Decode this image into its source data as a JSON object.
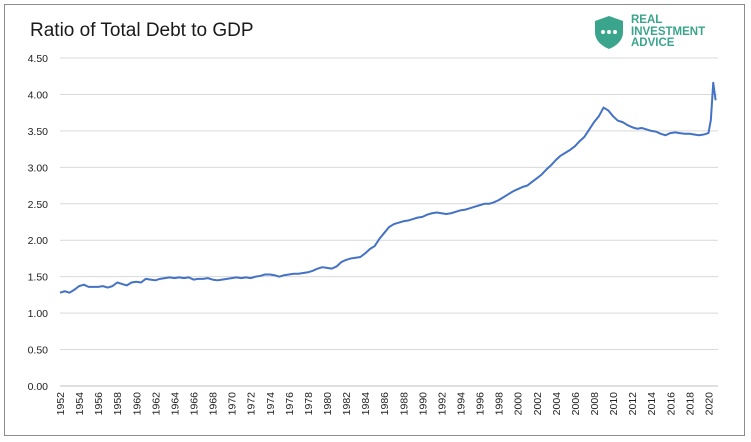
{
  "brand": {
    "logo_icon": "shield-chat-icon",
    "logo_color": "#3aa58c",
    "logo_lines": [
      "REAL",
      "INVESTMENT",
      "ADVICE"
    ]
  },
  "chart_data": {
    "type": "line",
    "title": "Ratio of Total Debt to GDP",
    "xlabel": "",
    "ylabel": "",
    "ylim": [
      0,
      4.5
    ],
    "xlim": [
      1952,
      2021
    ],
    "yticks": [
      "0.00",
      "0.50",
      "1.00",
      "1.50",
      "2.00",
      "2.50",
      "3.00",
      "3.50",
      "4.00",
      "4.50"
    ],
    "xticks": [
      "1952",
      "1954",
      "1956",
      "1958",
      "1960",
      "1962",
      "1964",
      "1966",
      "1968",
      "1970",
      "1972",
      "1974",
      "1976",
      "1978",
      "1980",
      "1982",
      "1984",
      "1986",
      "1988",
      "1990",
      "1992",
      "1994",
      "1996",
      "1998",
      "2000",
      "2002",
      "2004",
      "2006",
      "2008",
      "2010",
      "2012",
      "2014",
      "2016",
      "2018",
      "2020"
    ],
    "grid": "horizontal",
    "line_color": "#4472c4",
    "series": [
      {
        "x": [
          1952,
          1952.5,
          1953,
          1953.5,
          1954,
          1954.5,
          1955,
          1955.5,
          1956,
          1956.5,
          1957,
          1957.5,
          1958,
          1958.5,
          1959,
          1959.5,
          1960,
          1960.5,
          1961,
          1961.5,
          1962,
          1962.5,
          1963,
          1963.5,
          1964,
          1964.5,
          1965,
          1965.5,
          1966,
          1966.5,
          1967,
          1967.5,
          1968,
          1968.5,
          1969,
          1969.5,
          1970,
          1970.5,
          1971,
          1971.5,
          1972,
          1972.5,
          1973,
          1973.5,
          1974,
          1974.5,
          1975,
          1975.5,
          1976,
          1976.5,
          1977,
          1977.5,
          1978,
          1978.5,
          1979,
          1979.5,
          1980,
          1980.5,
          1981,
          1981.5,
          1982,
          1982.5,
          1983,
          1983.5,
          1984,
          1984.5,
          1985,
          1985.5,
          1986,
          1986.5,
          1987,
          1987.5,
          1988,
          1988.5,
          1989,
          1989.5,
          1990,
          1990.5,
          1991,
          1991.5,
          1992,
          1992.5,
          1993,
          1993.5,
          1994,
          1994.5,
          1995,
          1995.5,
          1996,
          1996.5,
          1997,
          1997.5,
          1998,
          1998.5,
          1999,
          1999.5,
          2000,
          2000.5,
          2001,
          2001.5,
          2002,
          2002.5,
          2003,
          2003.5,
          2004,
          2004.5,
          2005,
          2005.5,
          2006,
          2006.5,
          2007,
          2007.5,
          2008,
          2008.5,
          2009,
          2009.5,
          2010,
          2010.5,
          2011,
          2011.5,
          2012,
          2012.5,
          2013,
          2013.5,
          2014,
          2014.5,
          2015,
          2015.5,
          2016,
          2016.5,
          2017,
          2017.5,
          2018,
          2018.5,
          2019,
          2019.5,
          2020,
          2020.25,
          2020.5,
          2020.75
        ],
        "values": [
          1.28,
          1.3,
          1.28,
          1.32,
          1.37,
          1.39,
          1.36,
          1.36,
          1.36,
          1.37,
          1.35,
          1.37,
          1.42,
          1.4,
          1.38,
          1.42,
          1.43,
          1.42,
          1.47,
          1.46,
          1.45,
          1.47,
          1.48,
          1.49,
          1.48,
          1.49,
          1.48,
          1.49,
          1.46,
          1.47,
          1.47,
          1.48,
          1.46,
          1.45,
          1.46,
          1.47,
          1.48,
          1.49,
          1.48,
          1.49,
          1.48,
          1.5,
          1.51,
          1.53,
          1.53,
          1.52,
          1.5,
          1.52,
          1.53,
          1.54,
          1.54,
          1.55,
          1.56,
          1.58,
          1.61,
          1.63,
          1.62,
          1.61,
          1.64,
          1.7,
          1.73,
          1.75,
          1.76,
          1.77,
          1.82,
          1.88,
          1.92,
          2.02,
          2.1,
          2.18,
          2.22,
          2.24,
          2.26,
          2.27,
          2.29,
          2.31,
          2.32,
          2.35,
          2.37,
          2.38,
          2.37,
          2.36,
          2.37,
          2.39,
          2.41,
          2.42,
          2.44,
          2.46,
          2.48,
          2.5,
          2.5,
          2.52,
          2.55,
          2.59,
          2.63,
          2.67,
          2.7,
          2.73,
          2.75,
          2.8,
          2.85,
          2.9,
          2.97,
          3.03,
          3.1,
          3.16,
          3.2,
          3.24,
          3.29,
          3.36,
          3.42,
          3.52,
          3.62,
          3.7,
          3.82,
          3.78,
          3.7,
          3.64,
          3.62,
          3.58,
          3.55,
          3.53,
          3.54,
          3.52,
          3.5,
          3.49,
          3.46,
          3.44,
          3.47,
          3.48,
          3.47,
          3.46,
          3.46,
          3.45,
          3.44,
          3.45,
          3.47,
          3.65,
          4.16,
          3.92
        ]
      }
    ]
  }
}
